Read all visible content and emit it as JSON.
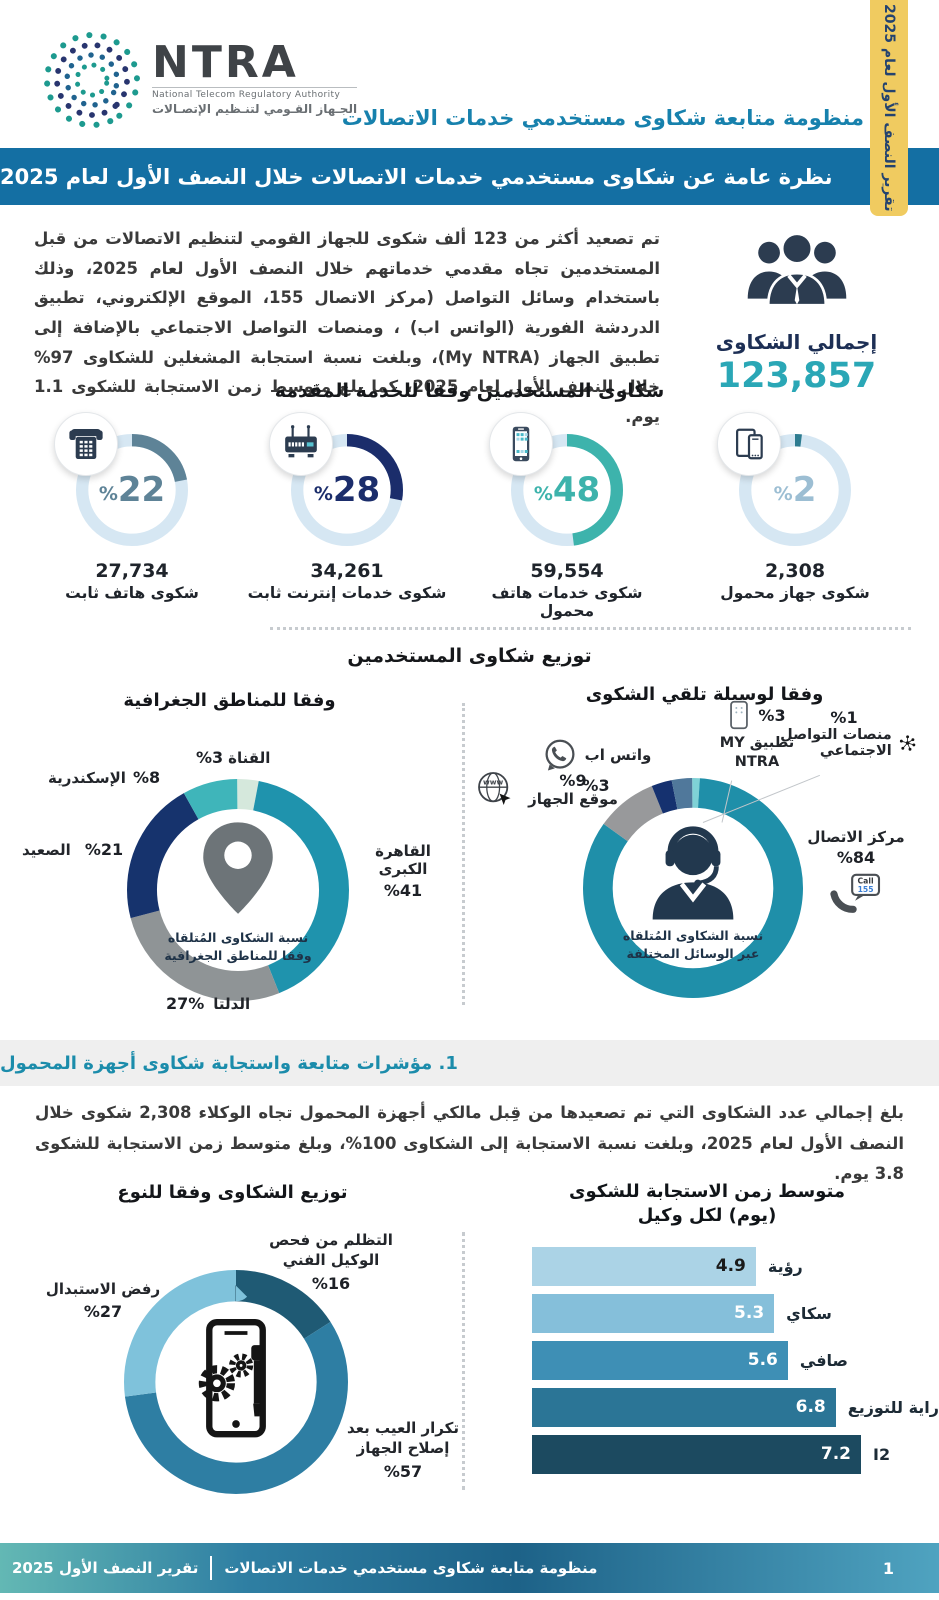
{
  "side_tab": "تقرير النصف الأول لعام 2025",
  "logo": {
    "name": "NTRA",
    "subtitle_en": "National Telecom Regulatory Authority",
    "subtitle_ar": "الجـهاز القـومي لتنـظيم الإتصـالات"
  },
  "header": {
    "title": "منظومة متابعة شكاوى مستخدمي خدمات الاتصالات",
    "banner": "نظرة عامة عن شكاوى مستخدمي خدمات الاتصالات خلال النصف الأول لعام 2025"
  },
  "intro": {
    "paragraph": "تم تصعيد أكثر من 123 ألف شكوى للجهاز القومي لتنظيم الاتصالات من قبل المستخدمين تجاه مقدمي خدماتهم خلال النصف الأول لعام 2025، وذلك باستخدام وسائل التواصل (مركز الاتصال 155، الموقع الإلكتروني، تطبيق الدردشة الفورية (الواتس اب) ، ومنصات التواصل الاجتماعي بالإضافة إلى تطبيق الجهاز (My NTRA)، وبلغت نسبة استجابة المشغلين للشكاوى 97% خلال النصف الأول لعام 2025، كما بلغ متوسط زمن الاستجابة للشكوى 1.1 يوم.",
    "total_label": "إجمالي الشكاوى",
    "total_value": "123,857"
  },
  "services": {
    "title": "شكاوى المستخدمين وفقا للخدمة المقدمة",
    "ring_base": "#d6e7f3",
    "items": [
      {
        "pct_sign": "%",
        "pct_num": "22",
        "value": "27,734",
        "label": "شكوى هاتف ثابت",
        "color": "#5e8397",
        "text_color": "#5e8397",
        "slices": [
          {
            "pct": 22,
            "color": "#5e8397"
          }
        ]
      },
      {
        "pct_sign": "%",
        "pct_num": "28",
        "value": "34,261",
        "label": "شكوى خدمات إنترنت ثابت",
        "color": "#1b2d6b",
        "text_color": "#1b2d6b",
        "slices": [
          {
            "pct": 28,
            "color": "#1b2d6b"
          }
        ]
      },
      {
        "pct_sign": "%",
        "pct_num": "48",
        "value": "59,554",
        "label": "شكوى خدمات هاتف محمول",
        "color": "#3db3ac",
        "text_color": "#3db3ac",
        "slices": [
          {
            "pct": 48,
            "color": "#3db3ac"
          }
        ]
      },
      {
        "pct_sign": "%",
        "pct_num": "2",
        "value": "2,308",
        "label": "شكوى جهاز محمول",
        "color": "#2e7c90",
        "text_color": "#9cbed3",
        "slices": [
          {
            "pct": 2,
            "color": "#2e7c90"
          }
        ]
      }
    ]
  },
  "distribution": {
    "title": "توزيع شكاوى المستخدمين",
    "channels": {
      "subtitle": "وفقا لوسيلة تلقي الشكوى",
      "center_line1": "نسبة الشكاوى المُتلقاه",
      "center_line2": "عبر الوسائل المختلفة",
      "slices": [
        {
          "name": "منصات التواصل الاجتماعي",
          "pct": 1,
          "color": "#7fd2d6"
        },
        {
          "name": "مركز الاتصال",
          "pct": 84,
          "color": "#1f8fa9"
        },
        {
          "name": "موقع الجهاز",
          "pct": 9,
          "color": "#98999b"
        },
        {
          "name": "واتس اب",
          "pct": 3,
          "color": "#15316f"
        },
        {
          "name": "تطبيق MY NTRA",
          "pct": 3,
          "color": "#50789b"
        }
      ],
      "labels": {
        "social": {
          "pct": "%1",
          "name": "منصات التواصل الاجتماعي"
        },
        "myntra": {
          "pct": "%3",
          "name_line1": "تطبيق MY",
          "name_line2": "NTRA"
        },
        "whatsapp": {
          "pct": "%3",
          "name": "واتس اب"
        },
        "website": {
          "pct": "%9",
          "name": "موقع الجهاز"
        },
        "callcenter": {
          "pct": "%84",
          "name": "مركز الاتصال"
        }
      },
      "call_icon": {
        "line1": "Call",
        "line2": "155"
      }
    },
    "regions": {
      "subtitle": "وفقا للمناطق الجغرافية",
      "center_line1": "نسبة الشكاوى المُتلقاه",
      "center_line2": "وفقا للمناطق الجغرافية",
      "slices": [
        {
          "name": "القناة",
          "pct": 3,
          "color": "#d5e8dc"
        },
        {
          "name": "القاهرة الكبرى",
          "pct": 41,
          "color": "#1f93ad"
        },
        {
          "name": "الدلتا",
          "pct": 27,
          "color": "#8f9496"
        },
        {
          "name": "الصعيد",
          "pct": 21,
          "color": "#16336d"
        },
        {
          "name": "الإسكندرية",
          "pct": 8,
          "color": "#3fb5ba"
        }
      ],
      "labels": {
        "qanah": {
          "pct": "%3",
          "name": "القناة"
        },
        "alex": {
          "pct": "%8",
          "name": "الإسكندرية"
        },
        "saeed": {
          "pct": "%21",
          "name": "الصعيد"
        },
        "delta": {
          "pct": "27%",
          "name": "الدلتا"
        },
        "cairo": {
          "pct": "%41",
          "name": "القاهرة الكبرى"
        }
      }
    }
  },
  "section2": {
    "heading": "1. مؤشرات متابعة واستجابة شكاوى أجهزة المحمول",
    "paragraph": "بلغ إجمالي عدد الشكاوى التي تم تصعيدها من قِبل مالكي أجهزة المحمول تجاه الوكلاء 2,308 شكوى خلال النصف الأول لعام 2025، وبلغت نسبة الاستجابة إلى الشكاوى 100%، وبلغ متوسط زمن الاستجابة للشكوى 3.8 يوم."
  },
  "types": {
    "title": "توزيع الشكاوى وفقا للنوع",
    "slices": [
      {
        "name": "التظلم من فحص الوكيل الفني",
        "pct": 16,
        "color": "#1f5a74"
      },
      {
        "name": "تكرار العيب بعد إصلاح الجهاز",
        "pct": 57,
        "color": "#2e7ea3"
      },
      {
        "name": "رفض الاستبدال",
        "pct": 27,
        "color": "#7fc2db"
      }
    ],
    "labels": {
      "inspection": {
        "pct": "%16",
        "name": "التظلم من فحص الوكيل الفني"
      },
      "replacement": {
        "pct": "%27",
        "name": "رفض الاستبدال"
      },
      "recurrence": {
        "pct": "%57",
        "name": "تكرار العيب بعد إصلاح الجهاز"
      }
    }
  },
  "bars": {
    "title_line1": "متوسط زمن الاستجابة للشكوى",
    "title_line2": "(يوم)  لكل وكيل",
    "max": 7.2,
    "items": [
      {
        "label": "رؤية",
        "value": "4.9",
        "color": "#abd3e6",
        "value_color": "#1a1a1a"
      },
      {
        "label": "سكاي",
        "value": "5.3",
        "color": "#85bfda",
        "value_color": "#ffffff"
      },
      {
        "label": "صافي",
        "value": "5.6",
        "color": "#3e8fb5",
        "value_color": "#ffffff"
      },
      {
        "label": "راية للتوزيع",
        "value": "6.8",
        "color": "#2b7596",
        "value_color": "#ffffff"
      },
      {
        "label": "I2",
        "value": "7.2",
        "color": "#1c4a60",
        "value_color": "#ffffff"
      }
    ]
  },
  "footer": {
    "report": "تقرير النصف الأول 2025",
    "divider": "|",
    "system": "منظومة متابعة شكاوى مستخدمي خدمات الاتصالات",
    "page": "1"
  },
  "chart_data": [
    {
      "type": "pie",
      "title": "شكاوى المستخدمين وفقا للخدمة المقدمة",
      "categories": [
        "شكوى هاتف ثابت",
        "شكوى خدمات إنترنت ثابت",
        "شكوى خدمات هاتف محمول",
        "شكوى جهاز محمول"
      ],
      "values": [
        22,
        28,
        48,
        2
      ],
      "counts": [
        27734,
        34261,
        59554,
        2308
      ],
      "unit": "%"
    },
    {
      "type": "pie",
      "title": "توزيع شكاوى المستخدمين وفقا لوسيلة تلقي الشكوى",
      "categories": [
        "مركز الاتصال",
        "موقع الجهاز",
        "واتس اب",
        "تطبيق MY NTRA",
        "منصات التواصل الاجتماعي"
      ],
      "values": [
        84,
        9,
        3,
        3,
        1
      ],
      "unit": "%"
    },
    {
      "type": "pie",
      "title": "توزيع شكاوى المستخدمين وفقا للمناطق الجغرافية",
      "categories": [
        "القاهرة الكبرى",
        "الدلتا",
        "الصعيد",
        "الإسكندرية",
        "القناة"
      ],
      "values": [
        41,
        27,
        21,
        8,
        3
      ],
      "unit": "%"
    },
    {
      "type": "pie",
      "title": "توزيع الشكاوى وفقا للنوع",
      "categories": [
        "تكرار العيب بعد إصلاح الجهاز",
        "رفض الاستبدال",
        "التظلم من فحص الوكيل الفني"
      ],
      "values": [
        57,
        27,
        16
      ],
      "unit": "%"
    },
    {
      "type": "bar",
      "orientation": "horizontal",
      "title": "متوسط زمن الاستجابة للشكوى (يوم) لكل وكيل",
      "categories": [
        "رؤية",
        "سكاي",
        "صافي",
        "راية للتوزيع",
        "I2"
      ],
      "values": [
        4.9,
        5.3,
        5.6,
        6.8,
        7.2
      ],
      "xlim": [
        0,
        7.2
      ],
      "ylabel": "الوكيل",
      "xlabel": "يوم"
    }
  ]
}
